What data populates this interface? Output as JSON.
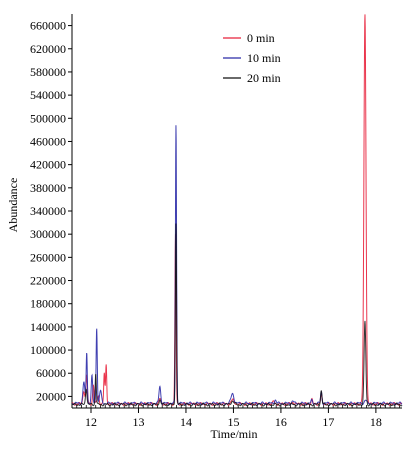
{
  "chart_data": {
    "type": "line",
    "xlabel": "Time/min",
    "ylabel": "Abundance",
    "xlim": [
      11.6,
      18.55
    ],
    "ylim": [
      0,
      680000
    ],
    "x_ticks": [
      12,
      13,
      14,
      15,
      16,
      17,
      18
    ],
    "y_ticks": [
      20000,
      60000,
      100000,
      140000,
      180000,
      220000,
      260000,
      300000,
      340000,
      380000,
      420000,
      460000,
      500000,
      540000,
      580000,
      620000,
      660000
    ],
    "legend_position": "top-right",
    "grid": false,
    "series": [
      {
        "name": "0 min",
        "color": "#e8203a",
        "baseline": 7000,
        "peaks": [
          {
            "x": 11.85,
            "y": 30000,
            "w": 0.02
          },
          {
            "x": 11.91,
            "y": 55000,
            "w": 0.015
          },
          {
            "x": 12.05,
            "y": 40000,
            "w": 0.015
          },
          {
            "x": 12.15,
            "y": 22000,
            "w": 0.02
          },
          {
            "x": 12.28,
            "y": 60000,
            "w": 0.012
          },
          {
            "x": 12.32,
            "y": 75000,
            "w": 0.012
          },
          {
            "x": 13.45,
            "y": 16000,
            "w": 0.02
          },
          {
            "x": 13.78,
            "y": 300000,
            "w": 0.012
          },
          {
            "x": 14.98,
            "y": 14000,
            "w": 0.03
          },
          {
            "x": 15.85,
            "y": 11000,
            "w": 0.02
          },
          {
            "x": 16.25,
            "y": 10000,
            "w": 0.02
          },
          {
            "x": 16.65,
            "y": 15000,
            "w": 0.015
          },
          {
            "x": 16.85,
            "y": 22000,
            "w": 0.015
          },
          {
            "x": 17.77,
            "y": 680000,
            "w": 0.022
          }
        ]
      },
      {
        "name": "10 min",
        "color": "#2b2ba8",
        "baseline": 8000,
        "peaks": [
          {
            "x": 11.85,
            "y": 45000,
            "w": 0.02
          },
          {
            "x": 11.91,
            "y": 96000,
            "w": 0.012
          },
          {
            "x": 12.02,
            "y": 55000,
            "w": 0.015
          },
          {
            "x": 12.12,
            "y": 140000,
            "w": 0.012
          },
          {
            "x": 12.2,
            "y": 30000,
            "w": 0.02
          },
          {
            "x": 13.45,
            "y": 38000,
            "w": 0.018
          },
          {
            "x": 13.79,
            "y": 490000,
            "w": 0.012
          },
          {
            "x": 14.98,
            "y": 25000,
            "w": 0.03
          },
          {
            "x": 15.88,
            "y": 14000,
            "w": 0.02
          },
          {
            "x": 16.25,
            "y": 12000,
            "w": 0.02
          },
          {
            "x": 16.65,
            "y": 13000,
            "w": 0.015
          },
          {
            "x": 16.85,
            "y": 28000,
            "w": 0.015
          },
          {
            "x": 17.78,
            "y": 14000,
            "w": 0.02
          }
        ]
      },
      {
        "name": "20 min",
        "color": "#111111",
        "baseline": 6000,
        "peaks": [
          {
            "x": 11.9,
            "y": 35000,
            "w": 0.015
          },
          {
            "x": 12.1,
            "y": 60000,
            "w": 0.012
          },
          {
            "x": 13.45,
            "y": 14000,
            "w": 0.018
          },
          {
            "x": 13.79,
            "y": 320000,
            "w": 0.012
          },
          {
            "x": 14.98,
            "y": 12000,
            "w": 0.03
          },
          {
            "x": 16.85,
            "y": 30000,
            "w": 0.015
          },
          {
            "x": 17.77,
            "y": 150000,
            "w": 0.018
          }
        ]
      }
    ]
  }
}
